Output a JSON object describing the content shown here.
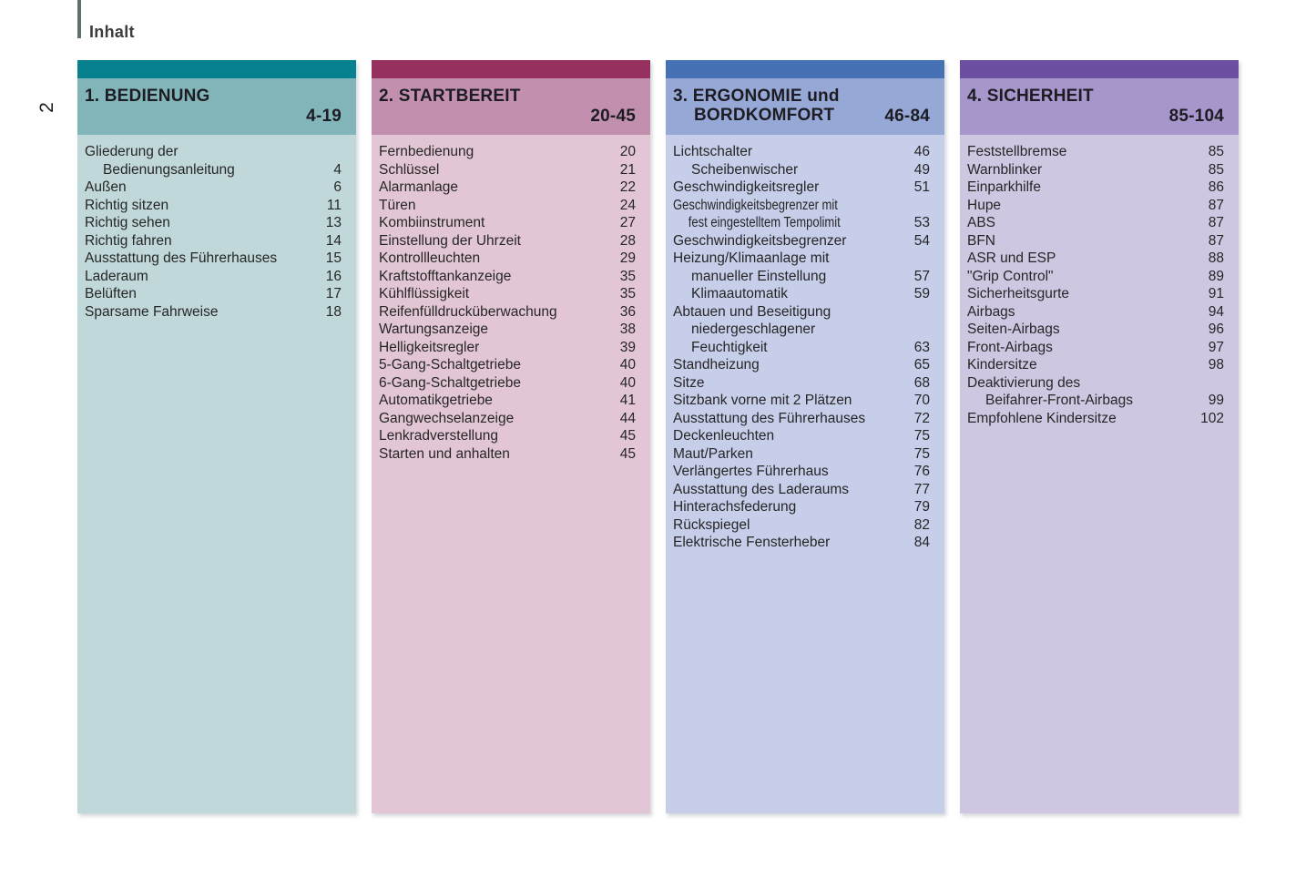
{
  "page": {
    "title": "Inhalt",
    "side_page_number": "2"
  },
  "sections": [
    {
      "id": "bedienung",
      "title_lines": [
        "1. BEDIENUNG"
      ],
      "page_range": "4-19",
      "colors": {
        "bar": "#06818D",
        "header_bg": "#82B5BA",
        "body_bg": "#C0D8DA"
      },
      "entries": [
        {
          "text": "Gliederung der",
          "page": "",
          "indent": false
        },
        {
          "text": "Bedienungsanleitung",
          "page": "4",
          "indent": true
        },
        {
          "text": "Außen",
          "page": "6",
          "indent": false
        },
        {
          "text": "Richtig sitzen",
          "page": "11",
          "indent": false
        },
        {
          "text": "Richtig sehen",
          "page": "13",
          "indent": false
        },
        {
          "text": "Richtig fahren",
          "page": "14",
          "indent": false
        },
        {
          "text": "Ausstattung des Führerhauses",
          "page": "15",
          "indent": false
        },
        {
          "text": "Laderaum",
          "page": "16",
          "indent": false
        },
        {
          "text": "Belüften",
          "page": "17",
          "indent": false
        },
        {
          "text": "Sparsame Fahrweise",
          "page": "18",
          "indent": false
        }
      ]
    },
    {
      "id": "startbereit",
      "title_lines": [
        "2. STARTBEREIT"
      ],
      "page_range": "20-45",
      "colors": {
        "bar": "#95305F",
        "header_bg": "#C28FAE",
        "body_bg": "#E2C6D5"
      },
      "entries": [
        {
          "text": "Fernbedienung",
          "page": "20",
          "indent": false
        },
        {
          "text": "Schlüssel",
          "page": "21",
          "indent": false
        },
        {
          "text": "Alarmanlage",
          "page": "22",
          "indent": false
        },
        {
          "text": "Türen",
          "page": "24",
          "indent": false
        },
        {
          "text": "Kombiinstrument",
          "page": "27",
          "indent": false
        },
        {
          "text": "Einstellung der Uhrzeit",
          "page": "28",
          "indent": false
        },
        {
          "text": "Kontrollleuchten",
          "page": "29",
          "indent": false
        },
        {
          "text": "Kraftstofftankanzeige",
          "page": "35",
          "indent": false
        },
        {
          "text": "Kühlflüssigkeit",
          "page": "35",
          "indent": false
        },
        {
          "text": "Reifenfülldrucküberwachung",
          "page": "36",
          "indent": false
        },
        {
          "text": "Wartungsanzeige",
          "page": "38",
          "indent": false
        },
        {
          "text": "Helligkeitsregler",
          "page": "39",
          "indent": false
        },
        {
          "text": "5-Gang-Schaltgetriebe",
          "page": "40",
          "indent": false
        },
        {
          "text": "6-Gang-Schaltgetriebe",
          "page": "40",
          "indent": false
        },
        {
          "text": "Automatikgetriebe",
          "page": "41",
          "indent": false
        },
        {
          "text": "Gangwechselanzeige",
          "page": "44",
          "indent": false
        },
        {
          "text": "Lenkradverstellung",
          "page": "45",
          "indent": false
        },
        {
          "text": "Starten und anhalten",
          "page": "45",
          "indent": false
        }
      ]
    },
    {
      "id": "ergonomie-bordkomfort",
      "title_lines": [
        "3. ERGONOMIE und",
        "BORDKOMFORT"
      ],
      "page_range": "46-84",
      "colors": {
        "bar": "#4671B4",
        "header_bg": "#96A8D5",
        "body_bg": "#C7CEE9"
      },
      "entries": [
        {
          "text": "Lichtschalter",
          "page": "46",
          "indent": false
        },
        {
          "text": "Scheibenwischer",
          "page": "49",
          "indent": true
        },
        {
          "text": "Geschwindigkeitsregler",
          "page": "51",
          "indent": false
        },
        {
          "text": "Geschwindigkeitsbegrenzer mit",
          "page": "",
          "indent": false,
          "condensed": true
        },
        {
          "text": "fest eingestelltem Tempolimit",
          "page": "53",
          "indent": true,
          "condensed": true
        },
        {
          "text": "Geschwindigkeitsbegrenzer",
          "page": "54",
          "indent": false
        },
        {
          "text": "Heizung/Klimaanlage mit",
          "page": "",
          "indent": false
        },
        {
          "text": "manueller Einstellung",
          "page": "57",
          "indent": true
        },
        {
          "text": "Klimaautomatik",
          "page": "59",
          "indent": true
        },
        {
          "text": "Abtauen und Beseitigung",
          "page": "",
          "indent": false
        },
        {
          "text": "niedergeschlagener",
          "page": "",
          "indent": true
        },
        {
          "text": "Feuchtigkeit",
          "page": "63",
          "indent": true
        },
        {
          "text": "Standheizung",
          "page": "65",
          "indent": false
        },
        {
          "text": "Sitze",
          "page": "68",
          "indent": false
        },
        {
          "text": "Sitzbank vorne mit 2 Plätzen",
          "page": "70",
          "indent": false
        },
        {
          "text": "Ausstattung des Führerhauses",
          "page": "72",
          "indent": false
        },
        {
          "text": "Deckenleuchten",
          "page": "75",
          "indent": false
        },
        {
          "text": "Maut/Parken",
          "page": "75",
          "indent": false
        },
        {
          "text": "Verlängertes Führerhaus",
          "page": "76",
          "indent": false
        },
        {
          "text": "Ausstattung des Laderaums",
          "page": "77",
          "indent": false
        },
        {
          "text": "Hinterachsfederung",
          "page": "79",
          "indent": false
        },
        {
          "text": "Rückspiegel",
          "page": "82",
          "indent": false
        },
        {
          "text": "Elektrische Fensterheber",
          "page": "84",
          "indent": false
        }
      ]
    },
    {
      "id": "sicherheit",
      "title_lines": [
        "4. SICHERHEIT"
      ],
      "page_range": "85-104",
      "colors": {
        "bar": "#6C4FA0",
        "header_bg": "#A696CB",
        "body_bg": "#CFC6E2"
      },
      "entries": [
        {
          "text": "Feststellbremse",
          "page": "85",
          "indent": false
        },
        {
          "text": "Warnblinker",
          "page": "85",
          "indent": false
        },
        {
          "text": "Einparkhilfe",
          "page": "86",
          "indent": false
        },
        {
          "text": "Hupe",
          "page": "87",
          "indent": false
        },
        {
          "text": "ABS",
          "page": "87",
          "indent": false
        },
        {
          "text": "BFN",
          "page": "87",
          "indent": false
        },
        {
          "text": "ASR und ESP",
          "page": "88",
          "indent": false
        },
        {
          "text": "\"Grip Control\"",
          "page": "89",
          "indent": false
        },
        {
          "text": "Sicherheitsgurte",
          "page": "91",
          "indent": false
        },
        {
          "text": "Airbags",
          "page": "94",
          "indent": false
        },
        {
          "text": "Seiten-Airbags",
          "page": "96",
          "indent": false
        },
        {
          "text": "Front-Airbags",
          "page": "97",
          "indent": false
        },
        {
          "text": "Kindersitze",
          "page": "98",
          "indent": false
        },
        {
          "text": "Deaktivierung des",
          "page": "",
          "indent": false
        },
        {
          "text": "Beifahrer-Front-Airbags",
          "page": "99",
          "indent": true
        },
        {
          "text": "Empfohlene Kindersitze",
          "page": "102",
          "indent": false
        }
      ]
    }
  ]
}
